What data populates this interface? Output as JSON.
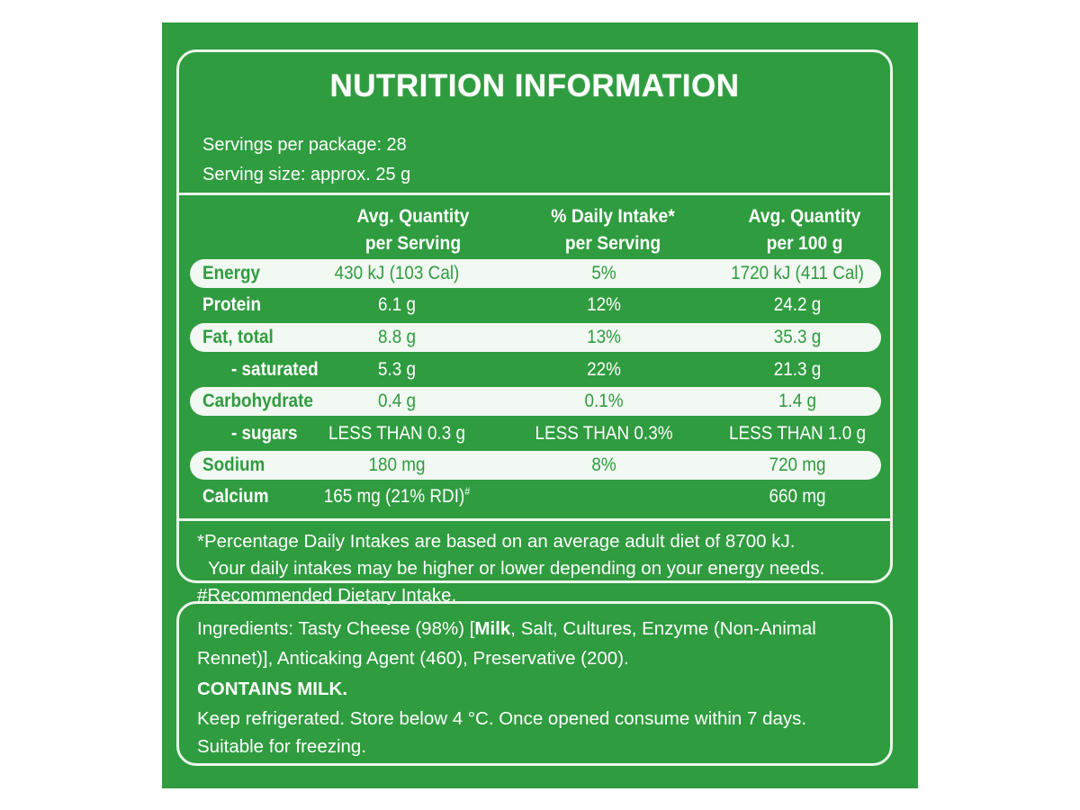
{
  "title": "NUTRITION INFORMATION",
  "servings_per_package": "Servings per package: 28",
  "serving_size": "Serving size: approx. 25 g",
  "headers": {
    "col1_line1": "Avg. Quantity",
    "col1_line2": "per Serving",
    "col2_line1": "% Daily Intake*",
    "col2_line2": "per Serving",
    "col3_line1": "Avg. Quantity",
    "col3_line2": "per 100 g"
  },
  "rows": [
    {
      "name": "Energy",
      "per_serving": "430 kJ (103 Cal)",
      "daily_intake": "5%",
      "per_100g": "1720 kJ (411 Cal)"
    },
    {
      "name": "Protein",
      "per_serving": "6.1 g",
      "daily_intake": "12%",
      "per_100g": "24.2 g"
    },
    {
      "name": "Fat, total",
      "per_serving": "8.8 g",
      "daily_intake": "13%",
      "per_100g": "35.3 g"
    },
    {
      "name": "- saturated",
      "per_serving": "5.3 g",
      "daily_intake": "22%",
      "per_100g": "21.3 g"
    },
    {
      "name": "Carbohydrate",
      "per_serving": "0.4 g",
      "daily_intake": "0.1%",
      "per_100g": "1.4 g"
    },
    {
      "name": "- sugars",
      "per_serving": "LESS THAN 0.3 g",
      "daily_intake": "LESS THAN 0.3%",
      "per_100g": "LESS THAN 1.0 g"
    },
    {
      "name": "Sodium",
      "per_serving": "180 mg",
      "daily_intake": "8%",
      "per_100g": "720 mg"
    },
    {
      "name": "Calcium",
      "per_serving": "165 mg (21% RDI)",
      "per_serving_mark": "#",
      "daily_intake": "",
      "per_100g": "660 mg"
    }
  ],
  "footnotes": {
    "line1": "*Percentage Daily Intakes are based on an average adult diet of 8700 kJ.",
    "line2": "Your daily intakes may be higher or lower depending on your energy needs.",
    "line3": "#Recommended Dietary Intake."
  },
  "ingredients": {
    "line1_prefix": "Ingredients: Tasty Cheese (98%) [",
    "line1_bold": "Milk",
    "line1_suffix": ", Salt, Cultures, Enzyme (Non-Animal",
    "line2": "Rennet)], Anticaking Agent (460), Preservative (200).",
    "contains": "CONTAINS MILK.",
    "storage": "Keep refrigerated. Store below 4 °C. Once opened consume within 7 days.",
    "freezing": "Suitable for freezing."
  },
  "colors": {
    "panel_green": "#2f9c3f",
    "band_white": "#f2f8f2",
    "border": "#eaf6ea"
  }
}
